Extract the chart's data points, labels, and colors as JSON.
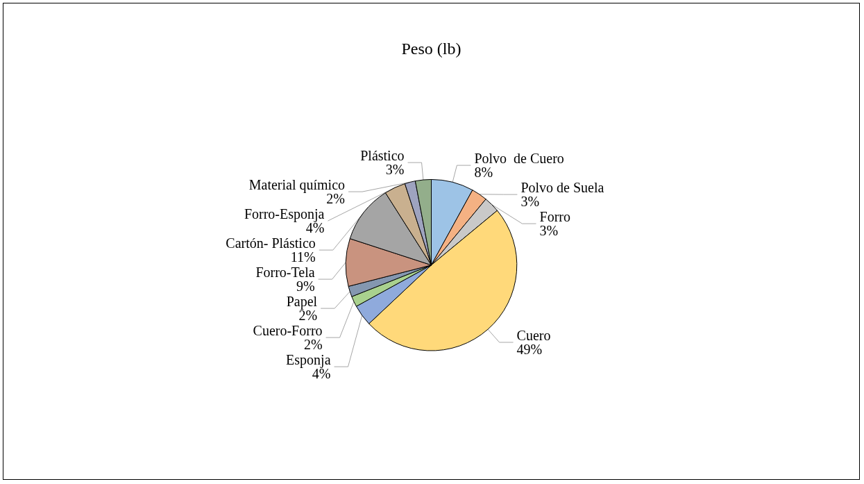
{
  "chart_data": {
    "type": "pie",
    "title": "Peso (lb)",
    "categories": [
      "Polvo  de Cuero",
      "Polvo de Suela",
      "Forro",
      "Cuero",
      "Esponja",
      "Cuero-Forro",
      "Papel",
      "Forro-Tela",
      "Cartón- Plástico",
      "Forro-Esponja",
      "Material químico",
      "Plástico"
    ],
    "values": [
      8,
      3,
      3,
      49,
      4,
      2,
      2,
      9,
      11,
      4,
      2,
      3
    ],
    "value_labels": [
      "8%",
      "3%",
      "3%",
      "49%",
      "4%",
      "2%",
      "2%",
      "9%",
      "11%",
      "4%",
      "2%",
      "3%"
    ],
    "colors": [
      "#9dc3e6",
      "#f4b183",
      "#c9c9c9",
      "#ffd97a",
      "#8faadc",
      "#a9d18e",
      "#8497b0",
      "#c9937f",
      "#a5a5a5",
      "#c9b08f",
      "#9ea3bf",
      "#93ae8b"
    ],
    "legend": false
  }
}
